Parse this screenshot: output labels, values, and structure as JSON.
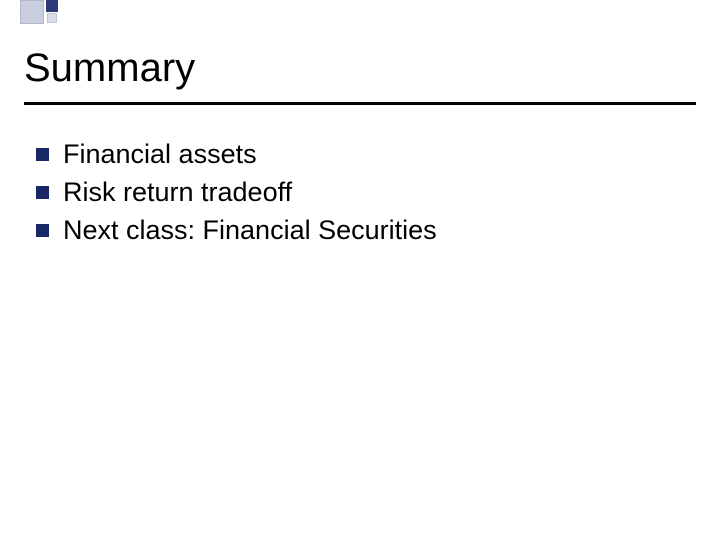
{
  "slide": {
    "title": "Summary",
    "title_fontsize": 40,
    "title_color": "#000000",
    "underline_color": "#000000",
    "underline_width": 672,
    "underline_thickness": 3,
    "background_color": "#ffffff",
    "bullets": [
      {
        "text": "Financial assets"
      },
      {
        "text": "Risk return tradeoff"
      },
      {
        "text": "Next class: Financial Securities"
      }
    ],
    "bullet_marker_color": "#1a2766",
    "bullet_marker_size": 13,
    "bullet_fontsize": 27,
    "bullet_text_color": "#000000",
    "decoration": {
      "large_square_color": "#c8cde0",
      "large_square_size": 24,
      "small_dark_color": "#2a3a7a",
      "small_dark_size": 12,
      "small_light_color": "#d8dce8",
      "small_light_size": 10
    }
  }
}
